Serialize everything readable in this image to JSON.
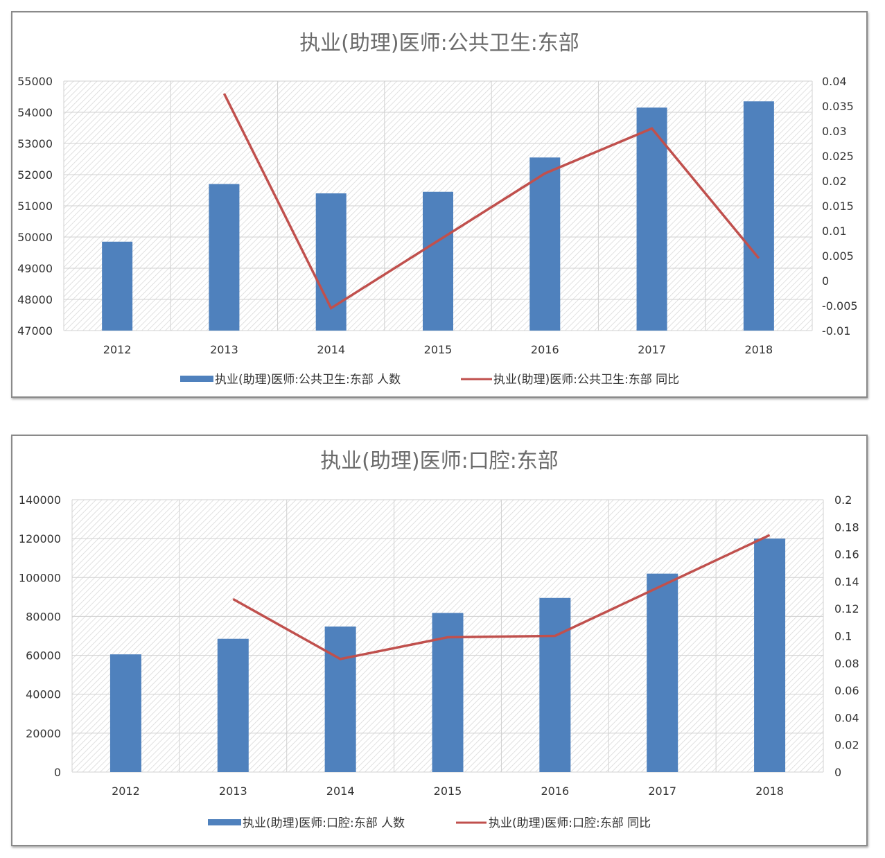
{
  "charts": [
    {
      "legend": {
        "bar_label": "执业(助理)医师:公共卫生:东部 人数",
        "line_label": "执业(助理)医师:公共卫生:东部 同比"
      },
      "y_left_ticks": [
        "55000",
        "54000",
        "53000",
        "52000",
        "51000",
        "50000",
        "49000",
        "48000",
        "47000"
      ],
      "y_right_ticks": [
        "0.04",
        "0.035",
        "0.03",
        "0.025",
        "0.02",
        "0.015",
        "0.01",
        "0.005",
        "0",
        "-0.005",
        "-0.01"
      ]
    },
    {
      "legend": {
        "bar_label": "执业(助理)医师:口腔:东部 人数",
        "line_label": "执业(助理)医师:口腔:东部 同比"
      },
      "y_left_ticks": [
        "140000",
        "120000",
        "100000",
        "80000",
        "60000",
        "40000",
        "20000",
        "0"
      ],
      "y_right_ticks": [
        "0.2",
        "0.18",
        "0.16",
        "0.14",
        "0.12",
        "0.1",
        "0.08",
        "0.06",
        "0.04",
        "0.02",
        "0"
      ]
    }
  ],
  "colors": {
    "bar": "#4f81bd",
    "line": "#c0504d",
    "grid": "#d0d0d0",
    "hatch": "#d9d9d9"
  },
  "chart_data": [
    {
      "type": "bar+line",
      "title": "执业(助理)医师:公共卫生:东部",
      "categories": [
        "2012",
        "2013",
        "2014",
        "2015",
        "2016",
        "2017",
        "2018"
      ],
      "series": [
        {
          "name": "执业(助理)医师:公共卫生:东部 人数",
          "type": "bar",
          "axis": "left",
          "values": [
            49850,
            51700,
            51400,
            51450,
            52550,
            54150,
            54350
          ]
        },
        {
          "name": "执业(助理)医师:公共卫生:东部 同比",
          "type": "line",
          "axis": "right",
          "values": [
            null,
            0.0375,
            -0.0055,
            0.008,
            0.0215,
            0.0305,
            0.0045
          ]
        }
      ],
      "ylim_left": [
        47000,
        55000
      ],
      "ylim_right": [
        -0.01,
        0.04
      ],
      "grid": true,
      "legend_position": "bottom"
    },
    {
      "type": "bar+line",
      "title": "执业(助理)医师:口腔:东部",
      "categories": [
        "2012",
        "2013",
        "2014",
        "2015",
        "2016",
        "2017",
        "2018"
      ],
      "series": [
        {
          "name": "执业(助理)医师:口腔:东部 人数",
          "type": "bar",
          "axis": "left",
          "values": [
            60500,
            68500,
            74800,
            81800,
            89500,
            102000,
            120000
          ]
        },
        {
          "name": "执业(助理)医师:口腔:东部 同比",
          "type": "line",
          "axis": "right",
          "values": [
            null,
            0.127,
            0.083,
            0.099,
            0.1,
            0.137,
            0.174
          ]
        }
      ],
      "ylim_left": [
        0,
        140000
      ],
      "ylim_right": [
        0,
        0.2
      ],
      "grid": true,
      "legend_position": "bottom"
    }
  ]
}
